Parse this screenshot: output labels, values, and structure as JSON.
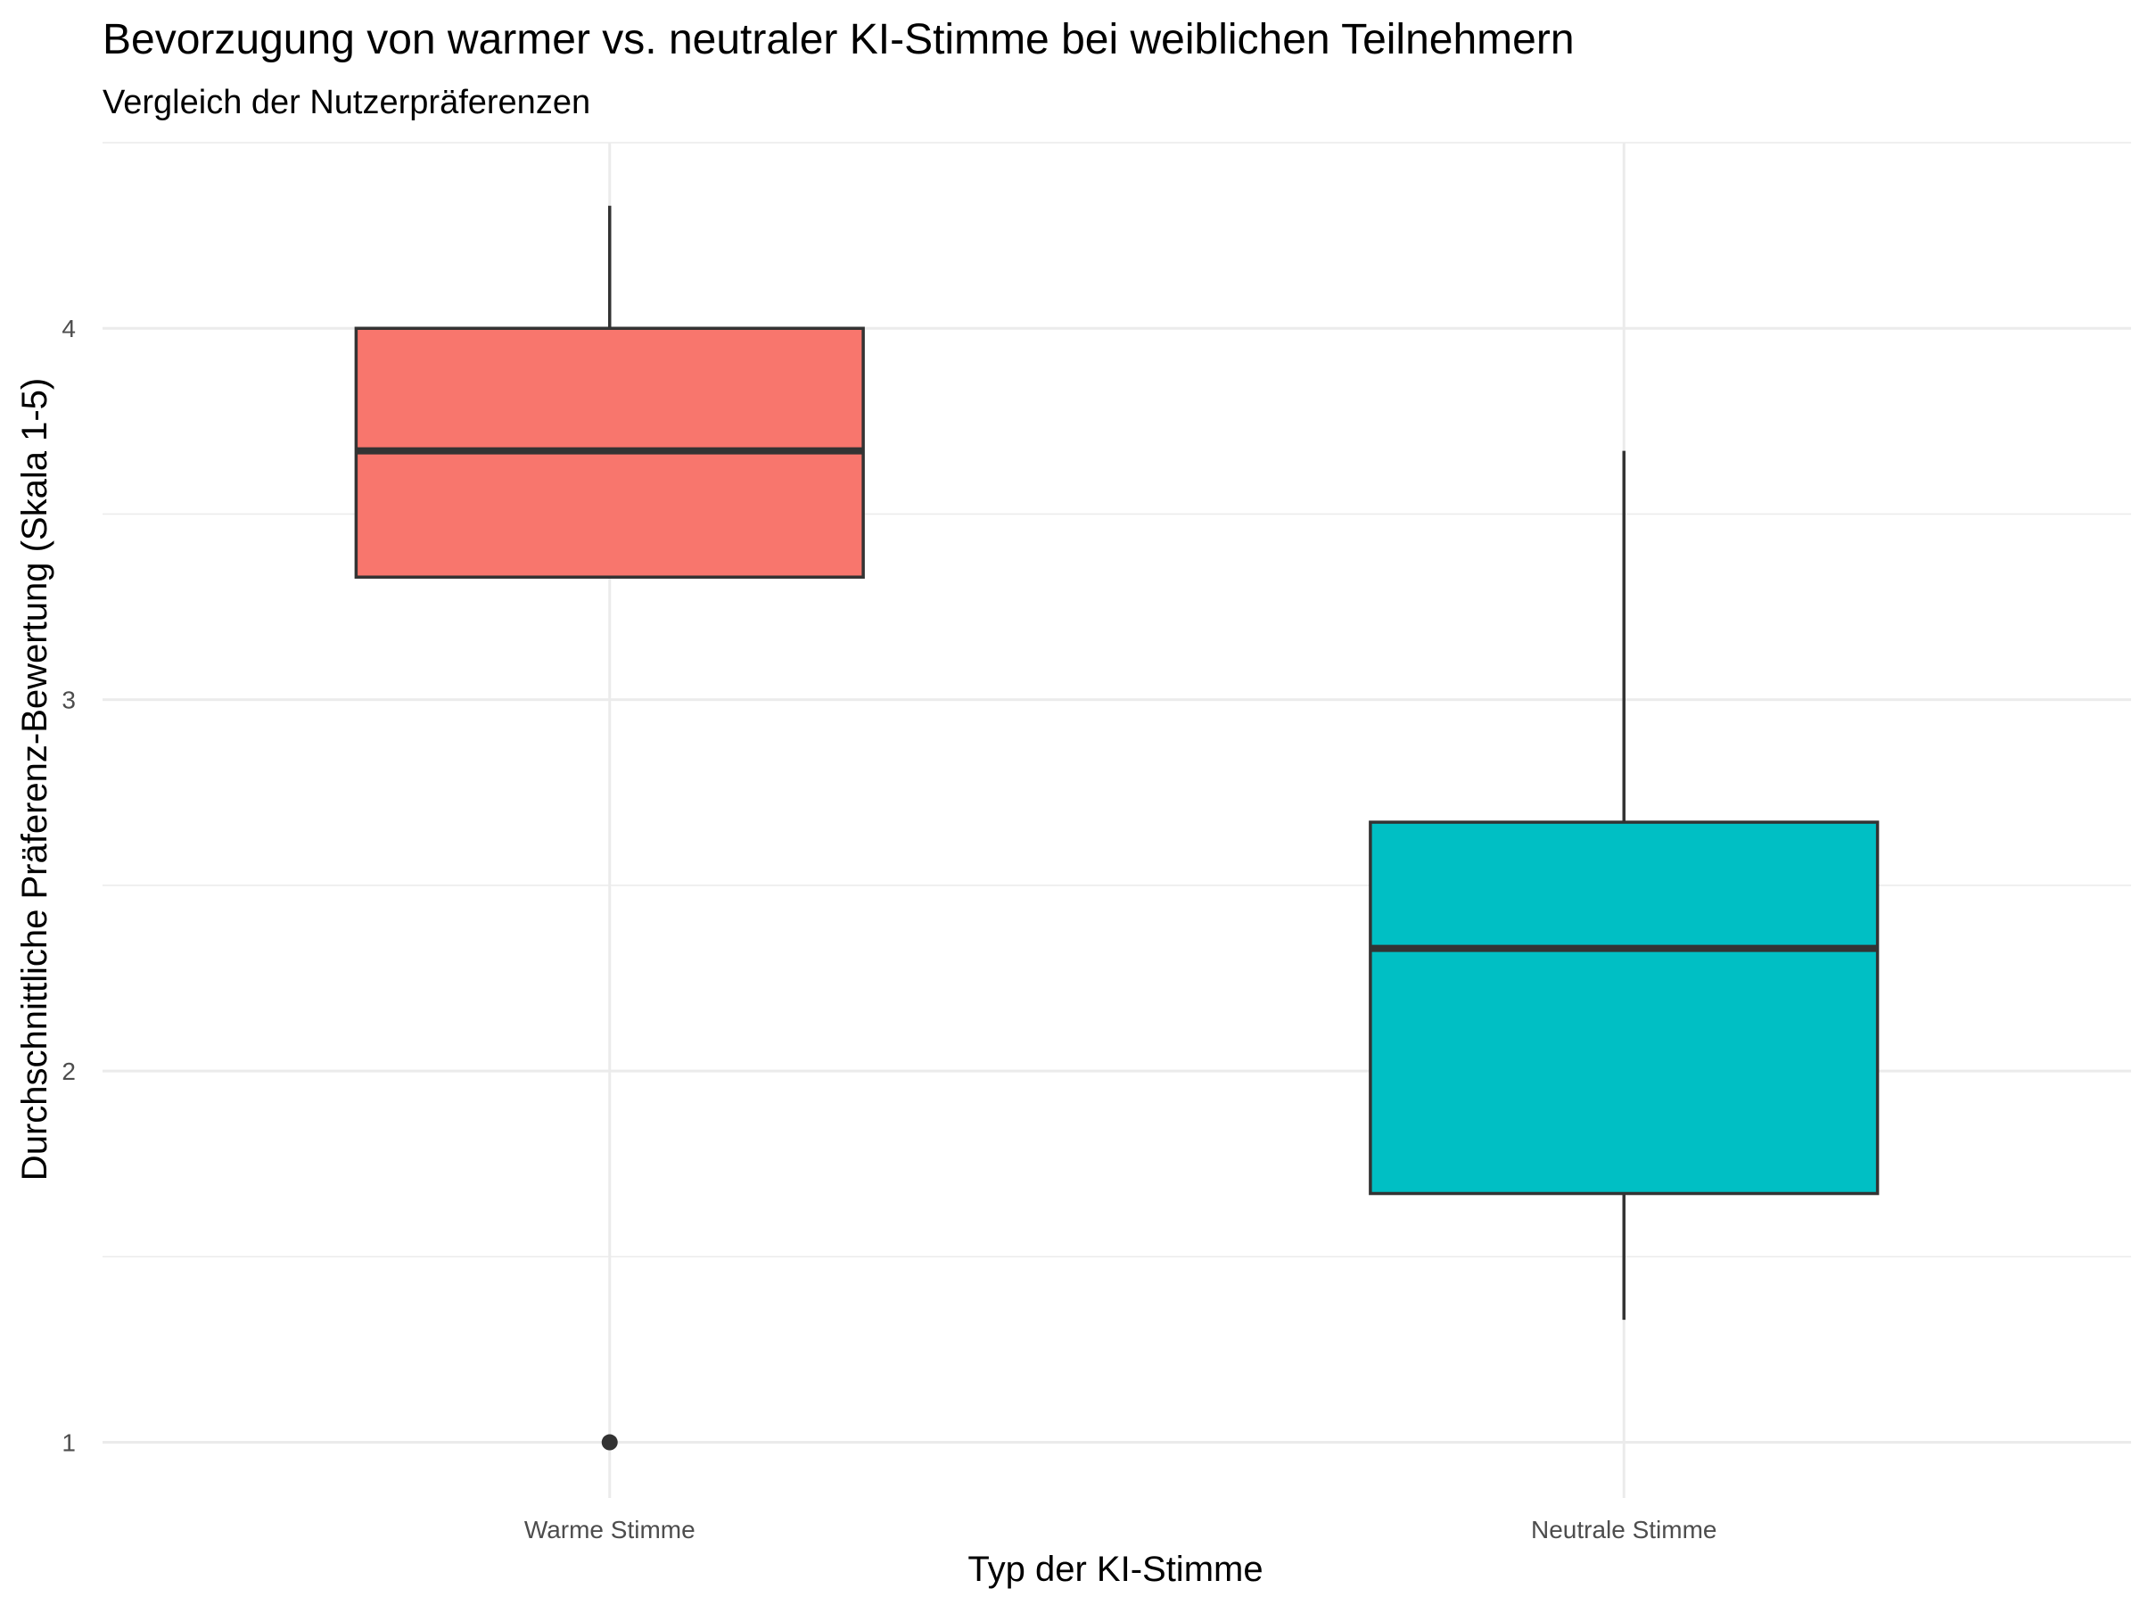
{
  "chart_data": {
    "type": "boxplot",
    "title": "Bevorzugung von warmer vs. neutraler KI-Stimme bei weiblichen Teilnehmern",
    "subtitle": "Vergleich der Nutzerpräferenzen",
    "xlabel": "Typ der KI-Stimme",
    "ylabel": "Durchschnittliche Präferenz-Bewertung (Skala 1-5)",
    "ylim": [
      0.85,
      4.5
    ],
    "yticks": [
      1,
      2,
      3,
      4
    ],
    "ytick_labels": [
      "1",
      "2",
      "3",
      "4"
    ],
    "grid": true,
    "legend": "none",
    "categories": [
      "Warme Stimme",
      "Neutrale Stimme"
    ],
    "boxes": [
      {
        "category": "Warme Stimme",
        "color": "#F8766D",
        "whisker_low": 3.33,
        "q1": 3.33,
        "median": 3.67,
        "q3": 4.0,
        "whisker_high": 4.33,
        "outliers": [
          1.0
        ]
      },
      {
        "category": "Neutrale Stimme",
        "color": "#00BFC4",
        "whisker_low": 1.33,
        "q1": 1.67,
        "median": 2.33,
        "q3": 2.67,
        "whisker_high": 3.67,
        "outliers": []
      }
    ]
  }
}
